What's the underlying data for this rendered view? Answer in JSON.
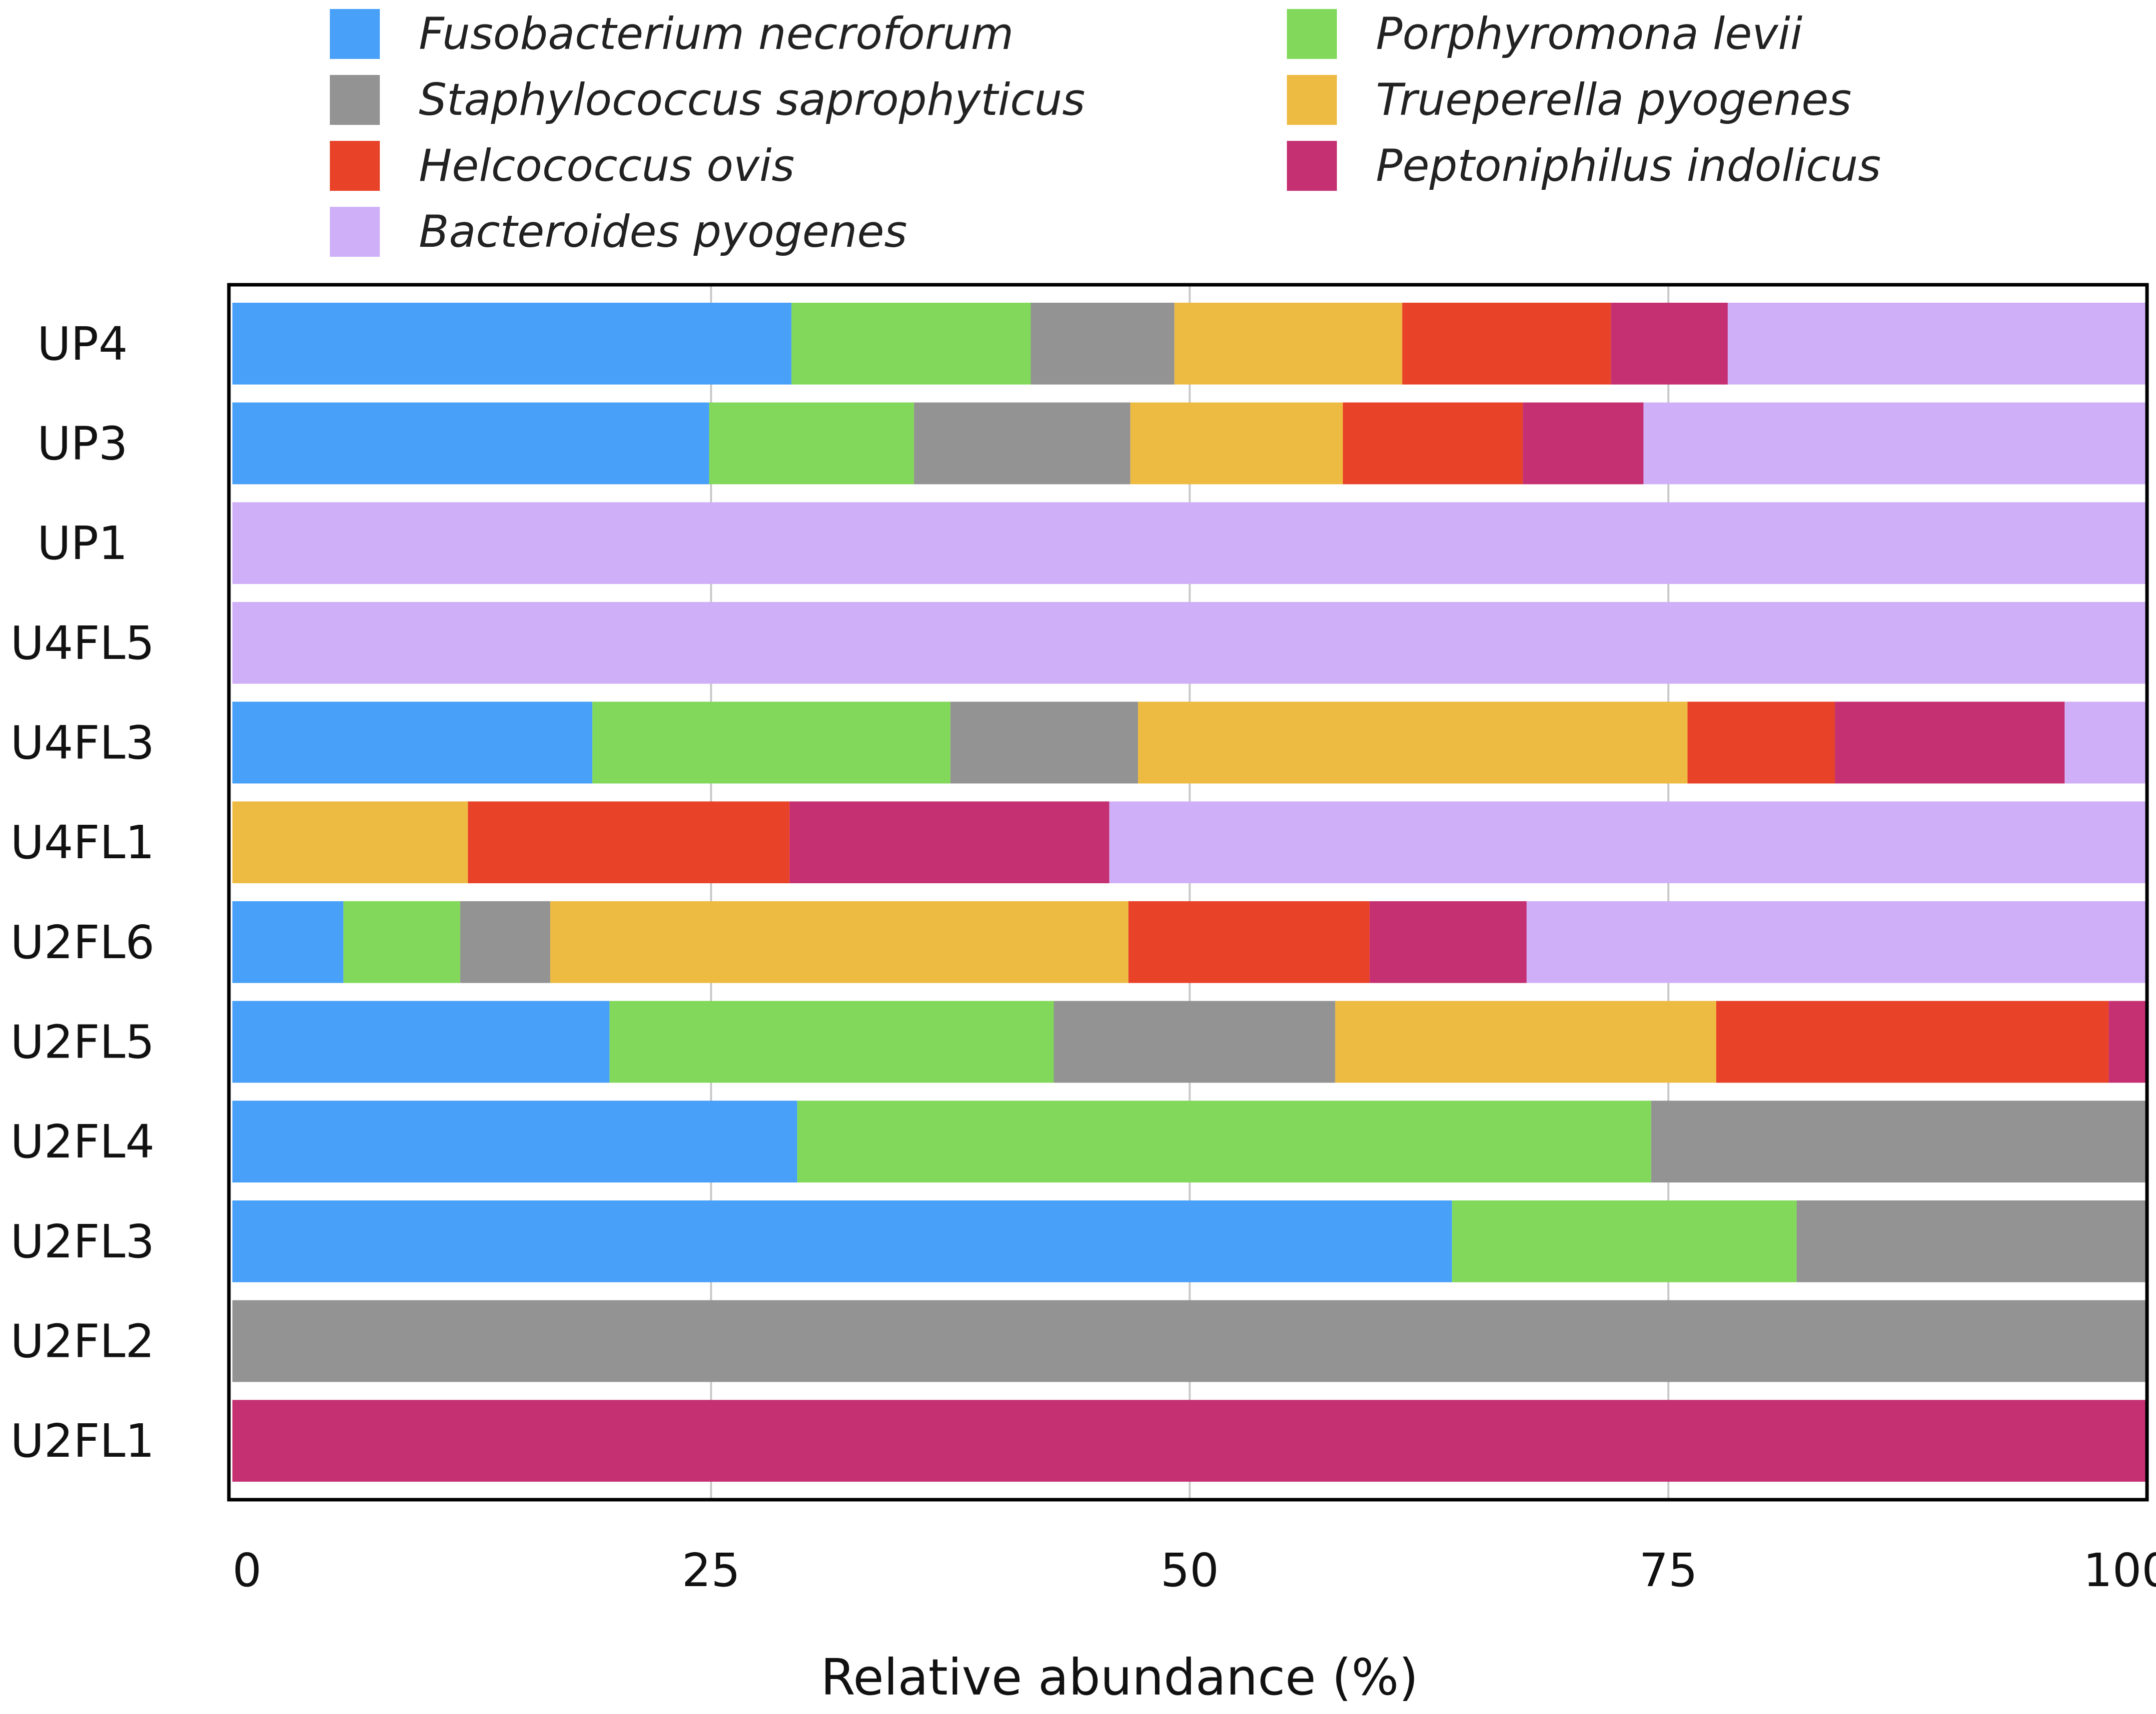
{
  "chart_data": {
    "type": "bar",
    "orientation": "horizontal",
    "stacked": true,
    "title": "",
    "xlabel": "Relative abundance (%)",
    "ylabel": "",
    "xlim": [
      0,
      100
    ],
    "xticks": [
      "0",
      "25",
      "50",
      "75",
      "100"
    ],
    "grid": true,
    "legend_position": "top",
    "categories": [
      "UP4",
      "UP3",
      "UP1",
      "U4FL5",
      "U4FL3",
      "U4FL1",
      "U2FL6",
      "U2FL5",
      "U2FL4",
      "U2FL3",
      "U2FL2",
      "U2FL1"
    ],
    "series": [
      {
        "name": "Fusobacterium necroforum",
        "color": "#48A0F8",
        "values": [
          29.2,
          24.9,
          0,
          0,
          18.8,
          0,
          5.8,
          19.7,
          29.5,
          63.7,
          0,
          0
        ]
      },
      {
        "name": "Porphyromona levii",
        "color": "#82D85A",
        "values": [
          12.5,
          10.7,
          0,
          0,
          18.7,
          0,
          6.1,
          23.2,
          44.6,
          18.0,
          0,
          0
        ]
      },
      {
        "name": "Staphylococcus saprophyticus",
        "color": "#939393",
        "values": [
          7.5,
          11.3,
          0,
          0,
          9.8,
          0,
          4.7,
          14.7,
          25.9,
          18.3,
          100,
          0
        ]
      },
      {
        "name": "Trueperella pyogenes",
        "color": "#EEBB42",
        "values": [
          11.9,
          11.1,
          0,
          0,
          28.7,
          12.3,
          30.2,
          19.9,
          0,
          0,
          0,
          0
        ]
      },
      {
        "name": "Helcococcus ovis",
        "color": "#E84229",
        "values": [
          10.9,
          9.4,
          0,
          0,
          7.7,
          16.8,
          12.6,
          20.5,
          0,
          0,
          0,
          0
        ]
      },
      {
        "name": "Peptoniphilus indolicus",
        "color": "#C43072",
        "values": [
          6.1,
          6.3,
          0,
          0,
          12.0,
          16.7,
          8.2,
          2.0,
          0,
          0,
          0,
          100
        ]
      },
      {
        "name": "Bacteroides pyogenes",
        "color": "#CFB0F8",
        "values": [
          21.9,
          26.3,
          100,
          100,
          4.3,
          54.2,
          32.4,
          0,
          0,
          0,
          0,
          0
        ]
      }
    ],
    "legend_order": [
      "Fusobacterium necroforum",
      "Staphylococcus saprophyticus",
      "Helcococcus ovis",
      "Bacteroides pyogenes",
      "Porphyromona levii",
      "Trueperella pyogenes",
      "Peptoniphilus indolicus"
    ]
  }
}
